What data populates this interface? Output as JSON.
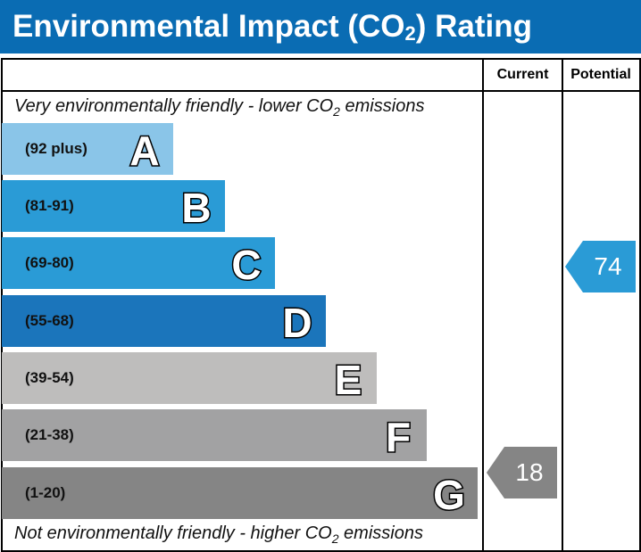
{
  "title": {
    "main": "Environmental Impact (CO",
    "sub": "2",
    "end": ") Rating"
  },
  "columns": {
    "current": "Current",
    "potential": "Potential"
  },
  "top_caption": {
    "pre": "Very environmentally friendly - lower CO",
    "sub": "2",
    "post": " emissions"
  },
  "bottom_caption": {
    "pre": "Not environmentally friendly - higher CO",
    "sub": "2",
    "post": " emissions"
  },
  "chart_data": {
    "type": "bar",
    "bands": [
      {
        "letter": "A",
        "range": "(92 plus)",
        "color": "#8ac5e8"
      },
      {
        "letter": "B",
        "range": "(81-91)",
        "color": "#2a9bd6"
      },
      {
        "letter": "C",
        "range": "(69-80)",
        "color": "#2a9bd6"
      },
      {
        "letter": "D",
        "range": "(55-68)",
        "color": "#1b75bb"
      },
      {
        "letter": "E",
        "range": "(39-54)",
        "color": "#bebdbc"
      },
      {
        "letter": "F",
        "range": "(21-38)",
        "color": "#a2a2a3"
      },
      {
        "letter": "G",
        "range": "(1-20)",
        "color": "#858585"
      }
    ],
    "current": {
      "value": 18,
      "band": "G",
      "color": "#858585"
    },
    "potential": {
      "value": 74,
      "band": "C",
      "color": "#2a9bd6"
    }
  }
}
